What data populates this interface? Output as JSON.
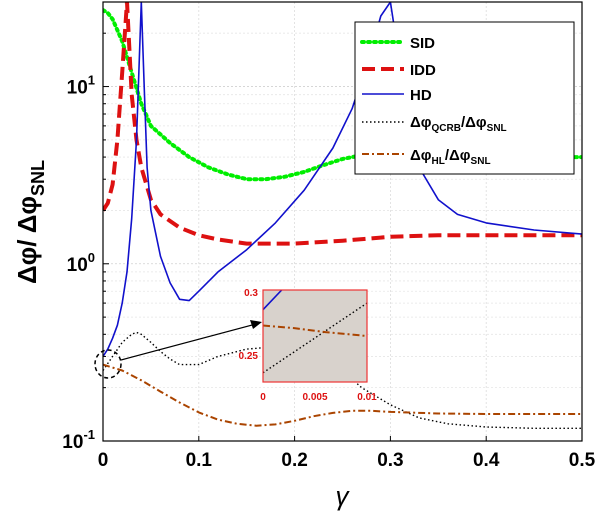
{
  "chart_data": [
    {
      "type": "line",
      "xlabel": "γ",
      "ylabel_parts": {
        "main": "Δφ/ Δφ",
        "sub": "SNL"
      },
      "xlim": [
        0,
        0.5
      ],
      "ylim": [
        0.1,
        30
      ],
      "yscale": "log",
      "grid": true,
      "legend_position": "top-right",
      "x_ticks": [
        0,
        0.1,
        0.2,
        0.3,
        0.4,
        0.5
      ],
      "x_tick_labels": [
        "0",
        "0.1",
        "0.2",
        "0.3",
        "0.4",
        "0.5"
      ],
      "y_ticks": [
        {
          "value": 0.1,
          "base": "10",
          "exp": "-1"
        },
        {
          "value": 1,
          "base": "10",
          "exp": "0"
        },
        {
          "value": 10,
          "base": "10",
          "exp": "1"
        }
      ],
      "series": [
        {
          "name": "SID",
          "color": "#00ee00",
          "style": "dotted",
          "x": [
            0,
            0.005,
            0.01,
            0.02,
            0.03,
            0.04,
            0.05,
            0.07,
            0.09,
            0.11,
            0.13,
            0.15,
            0.17,
            0.19,
            0.21,
            0.23,
            0.25,
            0.27,
            0.3,
            0.32,
            0.35,
            0.4,
            0.45,
            0.5
          ],
          "y": [
            27,
            26,
            24,
            18,
            12,
            8,
            6,
            4.8,
            4,
            3.5,
            3.2,
            3.0,
            3.0,
            3.1,
            3.3,
            3.6,
            3.9,
            4.1,
            4.2,
            4.15,
            4.1,
            4.0,
            4.0,
            4.0
          ]
        },
        {
          "name": "IDD",
          "color": "#dd1111",
          "style": "dashed",
          "x": [
            0,
            0.005,
            0.01,
            0.015,
            0.02,
            0.025,
            0.03,
            0.035,
            0.04,
            0.05,
            0.06,
            0.08,
            0.1,
            0.12,
            0.15,
            0.2,
            0.25,
            0.3,
            0.35,
            0.4,
            0.45,
            0.5
          ],
          "y": [
            2.0,
            2.2,
            2.8,
            5,
            12,
            30,
            9,
            5,
            3.5,
            2.3,
            1.9,
            1.6,
            1.45,
            1.37,
            1.3,
            1.3,
            1.35,
            1.42,
            1.45,
            1.45,
            1.45,
            1.45
          ]
        },
        {
          "name": "HD",
          "color": "#1111cc",
          "style": "solid",
          "x": [
            0,
            0.005,
            0.01,
            0.015,
            0.02,
            0.025,
            0.03,
            0.035,
            0.04,
            0.043,
            0.046,
            0.05,
            0.06,
            0.07,
            0.08,
            0.09,
            0.1,
            0.12,
            0.15,
            0.18,
            0.21,
            0.24,
            0.26,
            0.28,
            0.29,
            0.3,
            0.305,
            0.31,
            0.315,
            0.32,
            0.33,
            0.35,
            0.37,
            0.4,
            0.45,
            0.5
          ],
          "y": [
            0.3,
            0.33,
            0.38,
            0.45,
            0.6,
            0.9,
            1.8,
            5,
            30,
            10,
            3.5,
            2.0,
            1.1,
            0.78,
            0.63,
            0.62,
            0.7,
            0.9,
            1.2,
            1.7,
            2.6,
            4.5,
            7.5,
            16,
            25,
            30,
            20,
            12,
            8,
            5.5,
            3.5,
            2.3,
            1.9,
            1.7,
            1.55,
            1.47
          ]
        },
        {
          "name_parts": {
            "a": "Δφ",
            "a_sub": "QCRB",
            "sep": "/Δφ",
            "b_sub": "SNL"
          },
          "color": "#000000",
          "style": "dotted-fine",
          "x": [
            0,
            0.01,
            0.02,
            0.03,
            0.035,
            0.04,
            0.05,
            0.06,
            0.07,
            0.08,
            0.1,
            0.12,
            0.15,
            0.18,
            0.2,
            0.22,
            0.25,
            0.27,
            0.3,
            0.33,
            0.36,
            0.4,
            0.45,
            0.5
          ],
          "y": [
            0.25,
            0.3,
            0.36,
            0.4,
            0.41,
            0.4,
            0.36,
            0.32,
            0.29,
            0.27,
            0.27,
            0.3,
            0.33,
            0.34,
            0.33,
            0.3,
            0.25,
            0.2,
            0.16,
            0.135,
            0.125,
            0.12,
            0.118,
            0.118
          ]
        },
        {
          "name_parts": {
            "a": "Δφ",
            "a_sub": "HL",
            "sep": "/Δφ",
            "b_sub": "SNL"
          },
          "color": "#aa4400",
          "style": "dashdot",
          "x": [
            0,
            0.02,
            0.04,
            0.06,
            0.08,
            0.1,
            0.12,
            0.14,
            0.16,
            0.18,
            0.2,
            0.22,
            0.24,
            0.26,
            0.28,
            0.3,
            0.35,
            0.4,
            0.45,
            0.5
          ],
          "y": [
            0.27,
            0.25,
            0.22,
            0.19,
            0.165,
            0.145,
            0.132,
            0.125,
            0.122,
            0.124,
            0.13,
            0.138,
            0.144,
            0.148,
            0.148,
            0.146,
            0.143,
            0.142,
            0.142,
            0.142
          ]
        }
      ]
    },
    {
      "type": "line",
      "role": "inset",
      "xlim": [
        0,
        0.01
      ],
      "ylim": [
        0.23,
        0.3
      ],
      "x_tick_labels": [
        "0",
        "0.005",
        "0.01"
      ],
      "y_tick_labels": [
        "0.3",
        "0.25"
      ],
      "background": "#d8d2cc",
      "accent": "#ee3333",
      "series": [
        {
          "ref": "HD",
          "color": "#1111cc",
          "style": "solid",
          "x": [
            0,
            0.0018
          ],
          "y": [
            0.285,
            0.3
          ]
        },
        {
          "ref": "QCRB",
          "color": "#000000",
          "style": "dotted-fine",
          "x": [
            0,
            0.01
          ],
          "y": [
            0.237,
            0.29
          ]
        },
        {
          "ref": "HL",
          "color": "#aa4400",
          "style": "dashdot",
          "x": [
            0,
            0.003,
            0.006,
            0.01
          ],
          "y": [
            0.273,
            0.271,
            0.268,
            0.265
          ]
        }
      ]
    }
  ]
}
